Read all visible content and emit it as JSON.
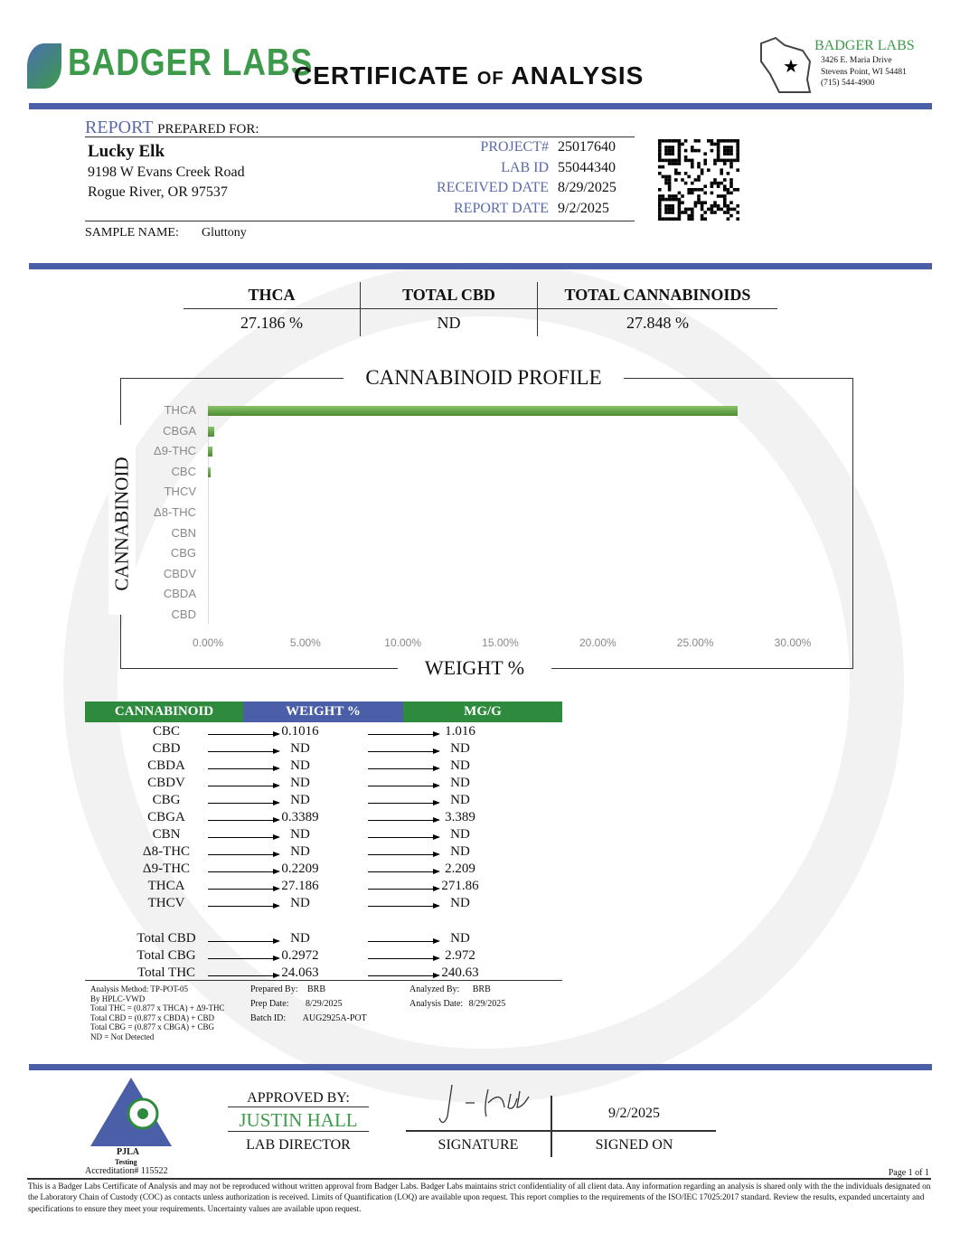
{
  "header": {
    "brand": "BADGER LABS",
    "title_main1": "CERTIFICATE",
    "title_of": "OF",
    "title_main2": "ANALYSIS",
    "lab_name": "BADGER LABS",
    "address1": "3426 E. Maria Drive",
    "address2": "Stevens Point, WI 54481",
    "phone": "(715) 544-4900"
  },
  "client": {
    "report_label": "REPORT",
    "prepared_for": "PREPARED FOR:",
    "name": "Lucky Elk",
    "street": "9198 W Evans Creek Road",
    "city": "Rogue River, OR 97537",
    "sample_label": "SAMPLE NAME:",
    "sample_name": "Gluttony"
  },
  "ids": [
    {
      "label": "PROJECT#",
      "value": "25017640"
    },
    {
      "label": "LAB ID",
      "value": "55044340"
    },
    {
      "label": "RECEIVED DATE",
      "value": "8/29/2025"
    },
    {
      "label": "REPORT DATE",
      "value": "9/2/2025"
    }
  ],
  "summary": [
    {
      "label": "THCA",
      "value": "27.186 %"
    },
    {
      "label": "TOTAL CBD",
      "value": "ND"
    },
    {
      "label": "TOTAL CANNABINOIDS",
      "value": "27.848 %"
    }
  ],
  "chart_data": {
    "type": "bar",
    "orientation": "horizontal",
    "title": "CANNABINOID PROFILE",
    "xlabel": "WEIGHT %",
    "ylabel": "CANNABINOID",
    "categories": [
      "THCA",
      "CBGA",
      "Δ9-THC",
      "CBC",
      "THCV",
      "Δ8-THC",
      "CBN",
      "CBG",
      "CBDV",
      "CBDA",
      "CBD"
    ],
    "values": [
      27.186,
      0.3389,
      0.2209,
      0.1016,
      0,
      0,
      0,
      0,
      0,
      0,
      0
    ],
    "xlim": [
      0,
      30
    ],
    "xticks": [
      "0.00%",
      "5.00%",
      "10.00%",
      "15.00%",
      "20.00%",
      "25.00%",
      "30.00%"
    ],
    "bar_color": "#6aa84f",
    "grid": false
  },
  "table": {
    "headers": [
      "CANNABINOID",
      "WEIGHT %",
      "MG/G"
    ],
    "header_colors": [
      "#2e8b3e",
      "#4a5fa8",
      "#2e8b3e"
    ],
    "rows": [
      [
        "CBC",
        "0.1016",
        "1.016"
      ],
      [
        "CBD",
        "ND",
        "ND"
      ],
      [
        "CBDA",
        "ND",
        "ND"
      ],
      [
        "CBDV",
        "ND",
        "ND"
      ],
      [
        "CBG",
        "ND",
        "ND"
      ],
      [
        "CBGA",
        "0.3389",
        "3.389"
      ],
      [
        "CBN",
        "ND",
        "ND"
      ],
      [
        "Δ8-THC",
        "ND",
        "ND"
      ],
      [
        "Δ9-THC",
        "0.2209",
        "2.209"
      ],
      [
        "THCA",
        "27.186",
        "271.86"
      ],
      [
        "THCV",
        "ND",
        "ND"
      ]
    ],
    "totals": [
      [
        "Total CBD",
        "ND",
        "ND"
      ],
      [
        "Total CBG",
        "0.2972",
        "2.972"
      ],
      [
        "Total THC",
        "24.063",
        "240.63"
      ]
    ]
  },
  "method": [
    "Analysis Method: TP-POT-05",
    "By HPLC-VWD",
    "Total THC = (0.877 x  THCA) + Δ9-THC",
    "Total CBD = (0.877 x  CBDA) + CBD",
    "Total CBG = (0.877 x  CBGA) + CBG",
    "ND = Not Detected"
  ],
  "prep": {
    "prepared_by_label": "Prepared By:",
    "prepared_by": "BRB",
    "prep_date_label": "Prep Date:",
    "prep_date": "8/29/2025",
    "batch_label": "Batch ID:",
    "batch": "AUG2925A-POT",
    "analyzed_by_label": "Analyzed By:",
    "analyzed_by": "BRB",
    "analysis_date_label": "Analysis Date:",
    "analysis_date": "8/29/2025"
  },
  "approval": {
    "approved_by": "APPROVED BY:",
    "name": "JUSTIN HALL",
    "role": "LAB DIRECTOR",
    "signature_label": "SIGNATURE",
    "date": "9/2/2025",
    "signed_on": "SIGNED ON",
    "pjla": "PJLA",
    "testing": "Testing",
    "accreditation": "Accreditation# 115522"
  },
  "footer": {
    "page": "Page 1 of 1",
    "disclaimer": "This is a Badger Labs Certificate of Analysis and may not be reproduced without written approval from Badger Labs. Badger Labs maintains strict confidentiality of all client data. Any information regarding an analysis is shared only with the the individuals designated on the Laboratory Chain of Custody (COC) as contacts unless authorization is received. Limits of Quantification (LOQ) are available upon request. This report complies to the requirements of the ISO/IEC 17025:2017 standard. Review the results, expanded uncertainty and specifications to ensure they meet your requirements. Uncertainty values are available upon request."
  }
}
